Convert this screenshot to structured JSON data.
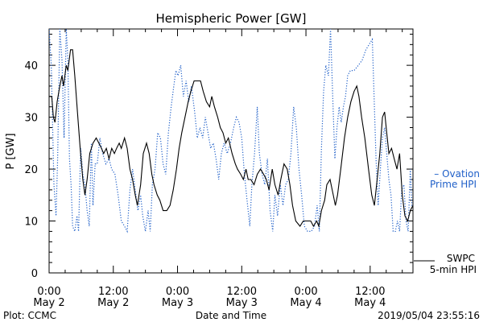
{
  "chart_data": {
    "type": "line",
    "title": "Hemispheric Power [GW]",
    "xlabel": "Date and Time",
    "ylabel": "P [GW]",
    "ylim": [
      0,
      47
    ],
    "xlim": [
      0,
      68
    ],
    "x_unit": "hours since May 2 00:00 (2019)",
    "y_ticks": [
      0,
      10,
      20,
      30,
      40
    ],
    "x_ticks": [
      {
        "x": 0,
        "line1": "0:00",
        "line2": "May 2"
      },
      {
        "x": 12,
        "line1": "12:00",
        "line2": "May 2"
      },
      {
        "x": 24,
        "line1": "0:00",
        "line2": "May 3"
      },
      {
        "x": 36,
        "line1": "12:00",
        "line2": "May 3"
      },
      {
        "x": 48,
        "line1": "0:00",
        "line2": "May 4"
      },
      {
        "x": 60,
        "line1": "12:00",
        "line2": "May 4"
      }
    ],
    "grid": false,
    "series": [
      {
        "name": "SWPC 5-min HPI",
        "style": "solid",
        "color": "#000000",
        "points": [
          [
            0,
            34
          ],
          [
            0.5,
            34
          ],
          [
            0.8,
            30
          ],
          [
            1.1,
            29
          ],
          [
            1.5,
            33
          ],
          [
            2,
            36
          ],
          [
            2.4,
            38
          ],
          [
            2.7,
            36
          ],
          [
            3.2,
            40
          ],
          [
            3.5,
            39
          ],
          [
            4,
            43
          ],
          [
            4.4,
            43
          ],
          [
            4.8,
            38
          ],
          [
            5.3,
            31
          ],
          [
            5.8,
            24
          ],
          [
            6.3,
            18
          ],
          [
            6.7,
            15
          ],
          [
            7.1,
            18
          ],
          [
            7.6,
            23
          ],
          [
            8.2,
            25
          ],
          [
            8.8,
            26
          ],
          [
            9.3,
            25
          ],
          [
            9.8,
            24
          ],
          [
            10.2,
            23
          ],
          [
            10.7,
            24
          ],
          [
            11.2,
            22
          ],
          [
            11.7,
            24
          ],
          [
            12.2,
            23
          ],
          [
            12.6,
            24
          ],
          [
            13.1,
            25
          ],
          [
            13.5,
            24
          ],
          [
            14.1,
            26
          ],
          [
            14.6,
            24
          ],
          [
            15.1,
            20
          ],
          [
            15.6,
            18
          ],
          [
            16.1,
            15
          ],
          [
            16.5,
            13
          ],
          [
            17.1,
            17
          ],
          [
            17.6,
            23
          ],
          [
            18.2,
            25
          ],
          [
            18.7,
            23
          ],
          [
            19.2,
            19
          ],
          [
            19.6,
            17
          ],
          [
            20.2,
            15
          ],
          [
            20.7,
            14
          ],
          [
            21.3,
            12
          ],
          [
            22,
            12
          ],
          [
            22.6,
            13
          ],
          [
            23.2,
            16
          ],
          [
            23.8,
            20
          ],
          [
            24.3,
            24
          ],
          [
            24.8,
            27
          ],
          [
            25.4,
            30
          ],
          [
            26,
            33
          ],
          [
            26.5,
            35
          ],
          [
            27.1,
            37
          ],
          [
            28.3,
            37
          ],
          [
            28.8,
            35
          ],
          [
            29.4,
            33
          ],
          [
            30,
            32
          ],
          [
            30.4,
            34
          ],
          [
            30.9,
            32
          ],
          [
            31.5,
            30
          ],
          [
            32,
            28
          ],
          [
            32.5,
            27
          ],
          [
            33,
            25
          ],
          [
            33.5,
            26
          ],
          [
            34.2,
            23
          ],
          [
            34.8,
            21
          ],
          [
            35.2,
            20
          ],
          [
            35.8,
            19
          ],
          [
            36.3,
            18
          ],
          [
            36.8,
            20
          ],
          [
            37.2,
            18
          ],
          [
            37.7,
            18
          ],
          [
            38.3,
            17
          ],
          [
            38.9,
            19
          ],
          [
            39.5,
            20
          ],
          [
            40.1,
            19
          ],
          [
            40.6,
            18
          ],
          [
            41.1,
            16
          ],
          [
            41.7,
            20
          ],
          [
            42.2,
            17
          ],
          [
            42.8,
            15
          ],
          [
            43.3,
            18
          ],
          [
            43.9,
            21
          ],
          [
            44.5,
            20
          ],
          [
            45,
            17
          ],
          [
            45.5,
            13
          ],
          [
            46.1,
            10
          ],
          [
            46.9,
            9
          ],
          [
            47.5,
            10
          ],
          [
            48.3,
            10
          ],
          [
            48.9,
            10
          ],
          [
            49.4,
            9
          ],
          [
            50,
            10
          ],
          [
            50.4,
            9
          ],
          [
            50.9,
            12
          ],
          [
            51.5,
            14
          ],
          [
            51.9,
            17
          ],
          [
            52.5,
            18
          ],
          [
            53.1,
            15
          ],
          [
            53.5,
            13
          ],
          [
            53.9,
            15
          ],
          [
            54.5,
            20
          ],
          [
            55.2,
            26
          ],
          [
            55.8,
            30
          ],
          [
            56.4,
            33
          ],
          [
            57,
            35
          ],
          [
            57.5,
            36
          ],
          [
            57.9,
            34
          ],
          [
            58.4,
            30
          ],
          [
            59,
            26
          ],
          [
            59.7,
            20
          ],
          [
            60.3,
            15
          ],
          [
            60.8,
            13
          ],
          [
            61.3,
            18
          ],
          [
            61.8,
            23
          ],
          [
            62.3,
            30
          ],
          [
            62.7,
            31
          ],
          [
            63.1,
            27
          ],
          [
            63.5,
            23
          ],
          [
            64,
            24
          ],
          [
            64.5,
            22
          ],
          [
            65,
            20
          ],
          [
            65.5,
            23
          ],
          [
            66,
            15
          ],
          [
            66.5,
            11
          ],
          [
            67,
            10
          ],
          [
            67.5,
            12
          ],
          [
            68,
            13
          ]
        ]
      },
      {
        "name": "Ovation Prime HPI",
        "style": "dotted",
        "color": "#1f5fc8",
        "points": [
          [
            0,
            47
          ],
          [
            0.4,
            40
          ],
          [
            0.9,
            17
          ],
          [
            1.3,
            11
          ],
          [
            1.6,
            22
          ],
          [
            2,
            47
          ],
          [
            2.4,
            41
          ],
          [
            2.8,
            26
          ],
          [
            3.2,
            47
          ],
          [
            3.5,
            41
          ],
          [
            3.8,
            22
          ],
          [
            4.1,
            17
          ],
          [
            4.4,
            9
          ],
          [
            4.8,
            8
          ],
          [
            5.2,
            11
          ],
          [
            5.5,
            8
          ],
          [
            5.9,
            24
          ],
          [
            6.3,
            19
          ],
          [
            6.7,
            17
          ],
          [
            7.1,
            12
          ],
          [
            7.5,
            9
          ],
          [
            7.9,
            25
          ],
          [
            8.2,
            13
          ],
          [
            8.6,
            21
          ],
          [
            9,
            21
          ],
          [
            9.5,
            26
          ],
          [
            10,
            23
          ],
          [
            10.6,
            21
          ],
          [
            11.2,
            22
          ],
          [
            11.7,
            20
          ],
          [
            12.3,
            19
          ],
          [
            12.9,
            15
          ],
          [
            13.5,
            10
          ],
          [
            14.1,
            9
          ],
          [
            14.6,
            8
          ],
          [
            15.1,
            16
          ],
          [
            15.6,
            20
          ],
          [
            16.1,
            16
          ],
          [
            16.6,
            12
          ],
          [
            17.1,
            15
          ],
          [
            17.5,
            11
          ],
          [
            18,
            8
          ],
          [
            18.5,
            12
          ],
          [
            18.9,
            8
          ],
          [
            19.3,
            17
          ],
          [
            19.8,
            20
          ],
          [
            20.3,
            27
          ],
          [
            20.8,
            26
          ],
          [
            21.3,
            21
          ],
          [
            21.8,
            19
          ],
          [
            22.3,
            27
          ],
          [
            22.8,
            32
          ],
          [
            23.3,
            36
          ],
          [
            23.7,
            39
          ],
          [
            24.1,
            38
          ],
          [
            24.6,
            40
          ],
          [
            25.1,
            34
          ],
          [
            25.6,
            37
          ],
          [
            26.1,
            33
          ],
          [
            26.6,
            36
          ],
          [
            27.2,
            31
          ],
          [
            27.7,
            26
          ],
          [
            28.2,
            28
          ],
          [
            28.7,
            26
          ],
          [
            29.2,
            30
          ],
          [
            29.7,
            27
          ],
          [
            30.2,
            24
          ],
          [
            30.7,
            25
          ],
          [
            31.2,
            22
          ],
          [
            31.7,
            18
          ],
          [
            32.2,
            23
          ],
          [
            32.7,
            25
          ],
          [
            33.3,
            23
          ],
          [
            33.9,
            25
          ],
          [
            34.5,
            28
          ],
          [
            35,
            30
          ],
          [
            35.5,
            29
          ],
          [
            36,
            26
          ],
          [
            36.5,
            19
          ],
          [
            37,
            14
          ],
          [
            37.5,
            9
          ],
          [
            37.9,
            17
          ],
          [
            38.4,
            23
          ],
          [
            38.9,
            32
          ],
          [
            39.3,
            23
          ],
          [
            39.8,
            19
          ],
          [
            40.3,
            17
          ],
          [
            40.8,
            22
          ],
          [
            41.3,
            12
          ],
          [
            41.8,
            8
          ],
          [
            42.2,
            15
          ],
          [
            42.7,
            11
          ],
          [
            43.2,
            17
          ],
          [
            43.7,
            13
          ],
          [
            44.2,
            17
          ],
          [
            44.7,
            18
          ],
          [
            45.2,
            23
          ],
          [
            45.7,
            32
          ],
          [
            46.2,
            28
          ],
          [
            46.7,
            20
          ],
          [
            47.2,
            15
          ],
          [
            47.7,
            9
          ],
          [
            48.3,
            8
          ],
          [
            49,
            8
          ],
          [
            49.6,
            9
          ],
          [
            50.1,
            13
          ],
          [
            50.5,
            8
          ],
          [
            50.9,
            24
          ],
          [
            51.3,
            35
          ],
          [
            51.7,
            40
          ],
          [
            52.2,
            38
          ],
          [
            52.6,
            47
          ],
          [
            53,
            34
          ],
          [
            53.4,
            22
          ],
          [
            53.8,
            28
          ],
          [
            54.2,
            32
          ],
          [
            54.6,
            29
          ],
          [
            55,
            32
          ],
          [
            55.4,
            34
          ],
          [
            55.8,
            38
          ],
          [
            56.3,
            39
          ],
          [
            57,
            39
          ],
          [
            57.8,
            40
          ],
          [
            58.5,
            41
          ],
          [
            59.2,
            43
          ],
          [
            59.8,
            44
          ],
          [
            60.4,
            45
          ],
          [
            60.7,
            35
          ],
          [
            61.1,
            22
          ],
          [
            61.5,
            13
          ],
          [
            61.9,
            20
          ],
          [
            62.3,
            26
          ],
          [
            62.7,
            28
          ],
          [
            63.1,
            23
          ],
          [
            63.5,
            18
          ],
          [
            63.9,
            15
          ],
          [
            64.3,
            8
          ],
          [
            64.7,
            8
          ],
          [
            65.1,
            10
          ],
          [
            65.5,
            8
          ],
          [
            65.9,
            16
          ],
          [
            66.3,
            17
          ],
          [
            66.7,
            10
          ],
          [
            67.1,
            8
          ],
          [
            67.5,
            20
          ],
          [
            67.8,
            13
          ],
          [
            68,
            13
          ]
        ]
      }
    ],
    "legend": {
      "placement": "right",
      "items": [
        {
          "series": "Ovation Prime HPI",
          "line1": "– Ovation",
          "line2": "Prime HPI",
          "color": "#1f5fc8"
        },
        {
          "series": "SWPC 5-min HPI",
          "line1": "SWPC",
          "line2": "5-min HPI",
          "color": "#000000"
        }
      ]
    },
    "annotations": {
      "plot_credit": "Plot: CCMC",
      "timestamp": "2019/05/04 23:55:16"
    }
  }
}
